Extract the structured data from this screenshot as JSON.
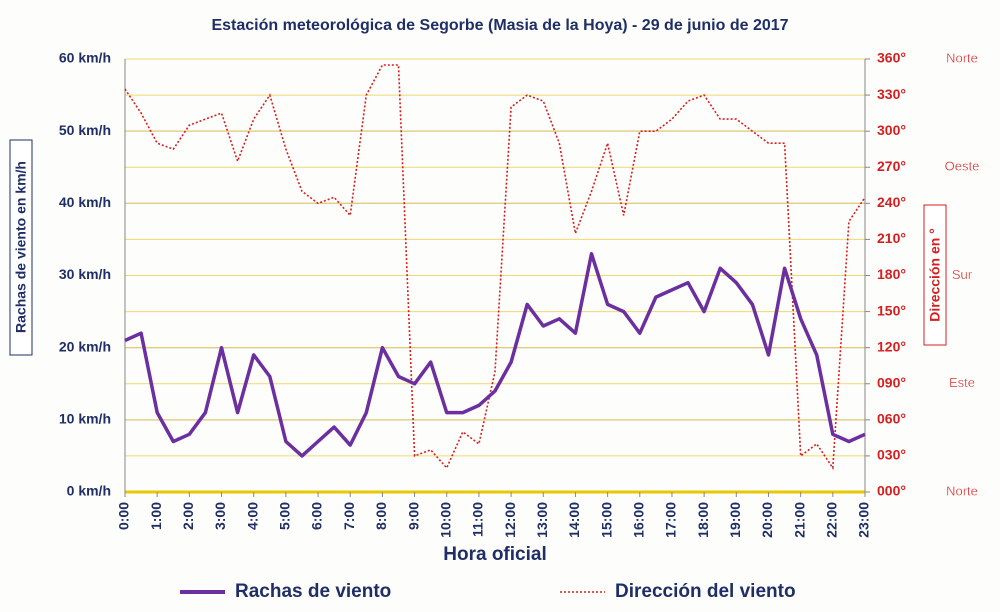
{
  "chart_data": {
    "type": "line",
    "title": "Estación meteorológica de Segorbe (Masia de la Hoya) - 29 de junio de 2017",
    "x_label": "Hora oficial",
    "y_label": "Rachas de viento en km/h",
    "y2_label": "Dirección en °",
    "x": [
      0,
      0.5,
      1,
      1.5,
      2,
      2.5,
      3,
      3.5,
      4,
      4.5,
      5,
      5.5,
      6,
      6.5,
      7,
      7.5,
      8,
      8.5,
      9,
      9.5,
      10,
      10.5,
      11,
      11.5,
      12,
      12.5,
      13,
      13.5,
      14,
      14.5,
      15,
      15.5,
      16,
      16.5,
      17,
      17.5,
      18,
      18.5,
      19,
      19.5,
      20,
      20.5,
      21,
      21.5,
      22,
      22.5,
      23
    ],
    "series": [
      {
        "name": "Rachas de viento",
        "color": "#6b2fa0",
        "style": "solid",
        "values": [
          21,
          22,
          11,
          7,
          8,
          11,
          20,
          11,
          19,
          16,
          7,
          5,
          7,
          9,
          6.5,
          11,
          20,
          16,
          15,
          18,
          11,
          11,
          12,
          14,
          18,
          26,
          23,
          24,
          22,
          33,
          26,
          25,
          22,
          27,
          28,
          29,
          25,
          31,
          29,
          26,
          19,
          31,
          24,
          19,
          8,
          7,
          8
        ]
      },
      {
        "name": "Dirección del viento",
        "color": "#d42020",
        "style": "dotted",
        "axis": "y2",
        "values": [
          335,
          315,
          290,
          285,
          305,
          310,
          315,
          275,
          310,
          330,
          285,
          250,
          240,
          245,
          230,
          330,
          355,
          355,
          30,
          35,
          20,
          50,
          40,
          100,
          320,
          330,
          325,
          290,
          215,
          250,
          290,
          230,
          300,
          300,
          310,
          325,
          330,
          310,
          310,
          300,
          290,
          290,
          30,
          40,
          20,
          225,
          245
        ]
      }
    ],
    "xlim": [
      0,
      23
    ],
    "xticks": [
      {
        "value": 0,
        "label": "0:00"
      },
      {
        "value": 1,
        "label": "1:00"
      },
      {
        "value": 2,
        "label": "2:00"
      },
      {
        "value": 3,
        "label": "3:00"
      },
      {
        "value": 4,
        "label": "4:00"
      },
      {
        "value": 5,
        "label": "5:00"
      },
      {
        "value": 6,
        "label": "6:00"
      },
      {
        "value": 7,
        "label": "7:00"
      },
      {
        "value": 8,
        "label": "8:00"
      },
      {
        "value": 9,
        "label": "9:00"
      },
      {
        "value": 10,
        "label": "10:00"
      },
      {
        "value": 11,
        "label": "11:00"
      },
      {
        "value": 12,
        "label": "12:00"
      },
      {
        "value": 13,
        "label": "13:00"
      },
      {
        "value": 14,
        "label": "14:00"
      },
      {
        "value": 15,
        "label": "15:00"
      },
      {
        "value": 16,
        "label": "16:00"
      },
      {
        "value": 17,
        "label": "17:00"
      },
      {
        "value": 18,
        "label": "18:00"
      },
      {
        "value": 19,
        "label": "19:00"
      },
      {
        "value": 20,
        "label": "20:00"
      },
      {
        "value": 21,
        "label": "21:00"
      },
      {
        "value": 22,
        "label": "22:00"
      },
      {
        "value": 23,
        "label": "23:00"
      }
    ],
    "ylim": [
      0,
      60
    ],
    "yticks": [
      {
        "value": 0,
        "label": "0 km/h"
      },
      {
        "value": 10,
        "label": "10 km/h"
      },
      {
        "value": 20,
        "label": "20 km/h"
      },
      {
        "value": 30,
        "label": "30 km/h"
      },
      {
        "value": 40,
        "label": "40 km/h"
      },
      {
        "value": 50,
        "label": "50 km/h"
      },
      {
        "value": 60,
        "label": "60 km/h"
      }
    ],
    "y2lim": [
      0,
      360
    ],
    "y2ticks": [
      {
        "value": 0,
        "label": "000°"
      },
      {
        "value": 30,
        "label": "030°"
      },
      {
        "value": 60,
        "label": "060°"
      },
      {
        "value": 90,
        "label": "090°"
      },
      {
        "value": 120,
        "label": "120°"
      },
      {
        "value": 150,
        "label": "150°"
      },
      {
        "value": 180,
        "label": "180°"
      },
      {
        "value": 210,
        "label": "210°"
      },
      {
        "value": 240,
        "label": "240°"
      },
      {
        "value": 270,
        "label": "270°"
      },
      {
        "value": 300,
        "label": "300°"
      },
      {
        "value": 330,
        "label": "330°"
      },
      {
        "value": 360,
        "label": "360°"
      }
    ],
    "direction_labels": [
      {
        "value": 360,
        "label": "Norte"
      },
      {
        "value": 270,
        "label": "Oeste"
      },
      {
        "value": 180,
        "label": "Sur"
      },
      {
        "value": 90,
        "label": "Este"
      },
      {
        "value": 0,
        "label": "Norte"
      }
    ],
    "grid": true
  }
}
